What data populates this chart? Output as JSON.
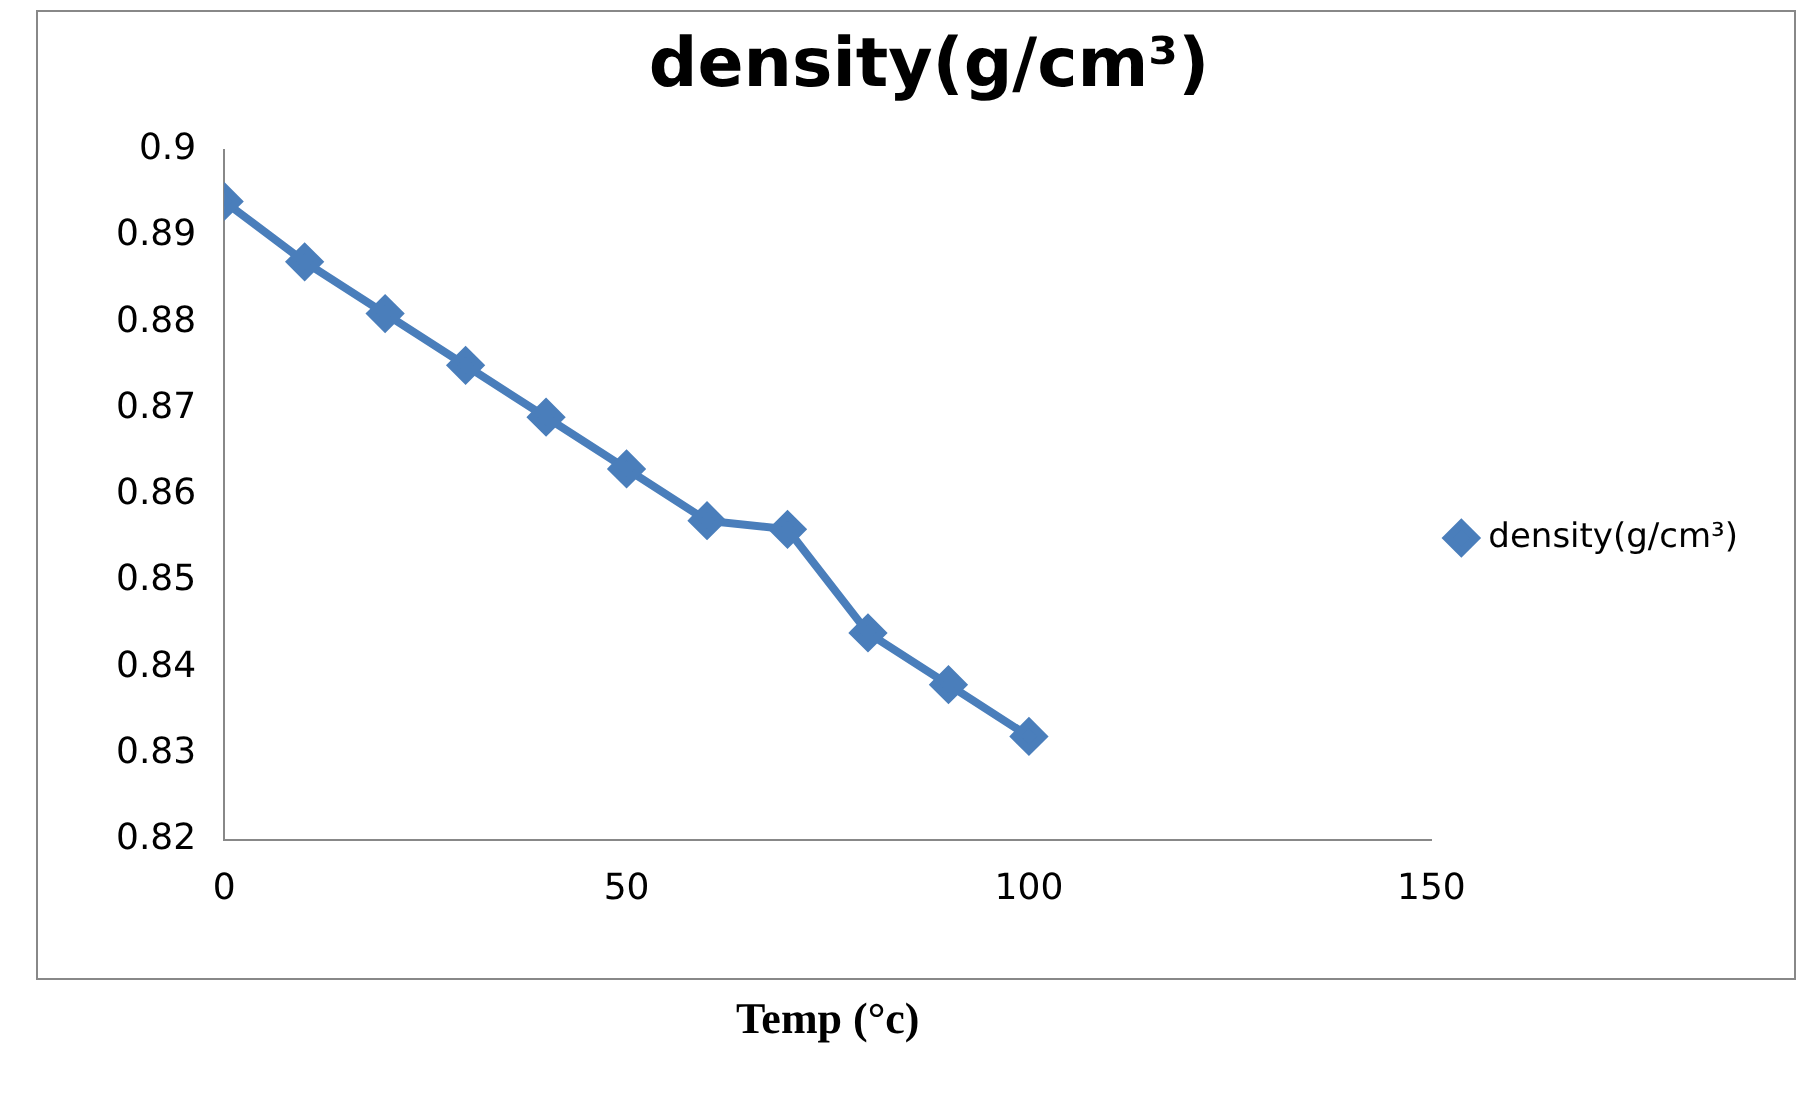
{
  "chart_data": {
    "type": "line",
    "title": "density(g/cm³)",
    "xlabel": "Temp (°c)",
    "x": [
      0,
      10,
      20,
      30,
      40,
      50,
      60,
      70,
      80,
      90,
      100
    ],
    "series": [
      {
        "name": "density(g/cm³)",
        "color": "#4a7ebb",
        "values": [
          0.894,
          0.887,
          0.881,
          0.875,
          0.869,
          0.863,
          0.857,
          0.856,
          0.844,
          0.838,
          0.832
        ]
      }
    ],
    "xlim": [
      0,
      150
    ],
    "xticks": [
      0,
      50,
      100,
      150
    ],
    "ylim": [
      0.82,
      0.9
    ],
    "yticks": [
      0.82,
      0.83,
      0.84,
      0.85,
      0.86,
      0.87,
      0.88,
      0.89,
      0.9
    ],
    "grid": false,
    "legend": "right",
    "marker": "diamond",
    "line_style": "solid"
  }
}
